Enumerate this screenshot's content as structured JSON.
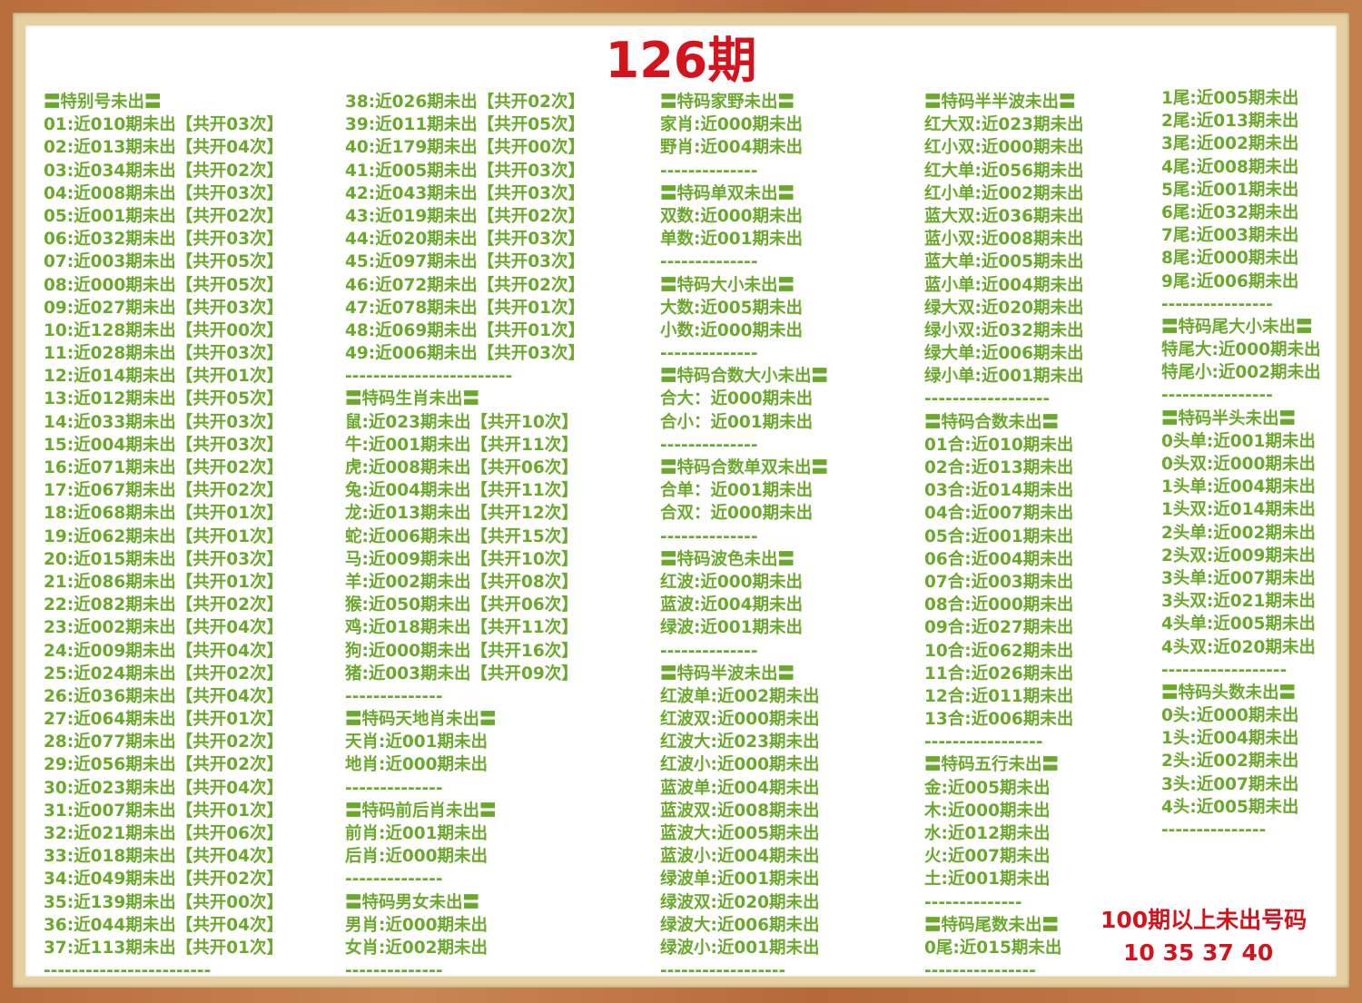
{
  "title": "126期",
  "footer": {
    "label": "100期以上未出号码",
    "numbers": "10 35 37 40"
  },
  "colors": {
    "text": "#6aa92b",
    "accent": "#d4141c",
    "frame": "#b86e3c"
  },
  "columns": [
    [
      "〓特别号未出〓",
      "01:近010期未出【共开03次】",
      "02:近013期未出【共开04次】",
      "03:近034期未出【共开02次】",
      "04:近008期未出【共开03次】",
      "05:近001期未出【共开02次】",
      "06:近032期未出【共开03次】",
      "07:近003期未出【共开05次】",
      "08:近000期未出【共开05次】",
      "09:近027期未出【共开03次】",
      "10:近128期未出【共开00次】",
      "11:近028期未出【共开03次】",
      "12:近014期未出【共开01次】",
      "13:近012期未出【共开05次】",
      "14:近033期未出【共开03次】",
      "15:近004期未出【共开03次】",
      "16:近071期未出【共开02次】",
      "17:近067期未出【共开02次】",
      "18:近068期未出【共开01次】",
      "19:近062期未出【共开01次】",
      "20:近015期未出【共开03次】",
      "21:近086期未出【共开01次】",
      "22:近082期未出【共开02次】",
      "23:近002期未出【共开04次】",
      "24:近009期未出【共开04次】",
      "25:近024期未出【共开02次】",
      "26:近036期未出【共开04次】",
      "27:近064期未出【共开01次】",
      "28:近077期未出【共开02次】",
      "29:近056期未出【共开02次】",
      "30:近023期未出【共开04次】",
      "31:近007期未出【共开01次】",
      "32:近021期未出【共开06次】",
      "33:近018期未出【共开04次】",
      "34:近049期未出【共开02次】",
      "35:近139期未出【共开00次】",
      "36:近044期未出【共开04次】",
      "37:近113期未出【共开01次】",
      "------------------------"
    ],
    [
      "38:近026期未出【共开02次】",
      "39:近011期未出【共开05次】",
      "40:近179期未出【共开00次】",
      "41:近005期未出【共开03次】",
      "42:近043期未出【共开03次】",
      "43:近019期未出【共开02次】",
      "44:近020期未出【共开03次】",
      "45:近097期未出【共开03次】",
      "46:近072期未出【共开02次】",
      "47:近078期未出【共开01次】",
      "48:近069期未出【共开01次】",
      "49:近006期未出【共开03次】",
      "------------------------",
      "〓特码生肖未出〓",
      "鼠:近023期未出【共开10次】",
      "牛:近001期未出【共开11次】",
      "虎:近008期未出【共开06次】",
      "兔:近004期未出【共开11次】",
      "龙:近013期未出【共开12次】",
      "蛇:近006期未出【共开15次】",
      "马:近009期未出【共开10次】",
      "羊:近002期未出【共开08次】",
      "猴:近050期未出【共开06次】",
      "鸡:近018期未出【共开11次】",
      "狗:近000期未出【共开16次】",
      "猪:近003期未出【共开09次】",
      "--------------",
      "〓特码天地肖未出〓",
      "天肖:近001期未出",
      "地肖:近000期未出",
      "--------------",
      "〓特码前后肖未出〓",
      "前肖:近001期未出",
      "后肖:近000期未出",
      "--------------",
      "〓特码男女未出〓",
      "男肖:近000期未出",
      "女肖:近002期未出",
      "--------------"
    ],
    [
      "〓特码家野未出〓",
      "家肖:近000期未出",
      "野肖:近004期未出",
      "--------------",
      "〓特码单双未出〓",
      "双数:近000期未出",
      "单数:近001期未出",
      "--------------",
      "〓特码大小未出〓",
      "大数:近005期未出",
      "小数:近000期未出",
      "--------------",
      "〓特码合数大小未出〓",
      "合大：近000期未出",
      "合小：近001期未出",
      "--------------",
      "〓特码合数单双未出〓",
      "合单：近001期未出",
      "合双：近000期未出",
      "--------------",
      "〓特码波色未出〓",
      "红波:近000期未出",
      "蓝波:近004期未出",
      "绿波:近001期未出",
      "--------------",
      "〓特码半波未出〓",
      "红波单:近002期未出",
      "红波双:近000期未出",
      "红波大:近023期未出",
      "红波小:近000期未出",
      "蓝波单:近004期未出",
      "蓝波双:近008期未出",
      "蓝波大:近005期未出",
      "蓝波小:近004期未出",
      "绿波单:近001期未出",
      "绿波双:近020期未出",
      "绿波大:近006期未出",
      "绿波小:近001期未出",
      "------------------"
    ],
    [
      "〓特码半半波未出〓",
      "红大双:近023期未出",
      "红小双:近000期未出",
      "红大单:近056期未出",
      "红小单:近002期未出",
      "蓝大双:近036期未出",
      "蓝小双:近008期未出",
      "蓝大单:近005期未出",
      "蓝小单:近004期未出",
      "绿大双:近020期未出",
      "绿小双:近032期未出",
      "绿大单:近006期未出",
      "绿小单:近001期未出",
      "------------------",
      "〓特码合数未出〓",
      "01合:近010期未出",
      "02合:近013期未出",
      "03合:近014期未出",
      "04合:近007期未出",
      "05合:近001期未出",
      "06合:近004期未出",
      "07合:近003期未出",
      "08合:近000期未出",
      "09合:近027期未出",
      "10合:近062期未出",
      "11合:近026期未出",
      "12合:近011期未出",
      "13合:近006期未出",
      "-----------------",
      "〓特码五行未出〓",
      "金:近005期未出",
      "木:近000期未出",
      "水:近012期未出",
      "火:近007期未出",
      "土:近001期未出",
      "--------------",
      "〓特码尾数未出〓",
      "0尾:近015期未出",
      "----------------"
    ],
    [
      "1尾:近005期未出",
      "2尾:近013期未出",
      "3尾:近002期未出",
      "4尾:近008期未出",
      "5尾:近001期未出",
      "6尾:近032期未出",
      "7尾:近003期未出",
      "8尾:近000期未出",
      "9尾:近006期未出",
      "----------------",
      "〓特码尾大小未出〓",
      "特尾大:近000期未出",
      "特尾小:近002期未出",
      "----------------",
      "〓特码半头未出〓",
      "0头单:近001期未出",
      "0头双:近000期未出",
      "1头单:近004期未出",
      "1头双:近014期未出",
      "2头单:近002期未出",
      "2头双:近009期未出",
      "3头单:近007期未出",
      "3头双:近021期未出",
      "4头单:近005期未出",
      "4头双:近020期未出",
      "------------------",
      "〓特码头数未出〓",
      "0头:近000期未出",
      "1头:近004期未出",
      "2头:近002期未出",
      "3头:近007期未出",
      "4头:近005期未出",
      "---------------"
    ]
  ]
}
